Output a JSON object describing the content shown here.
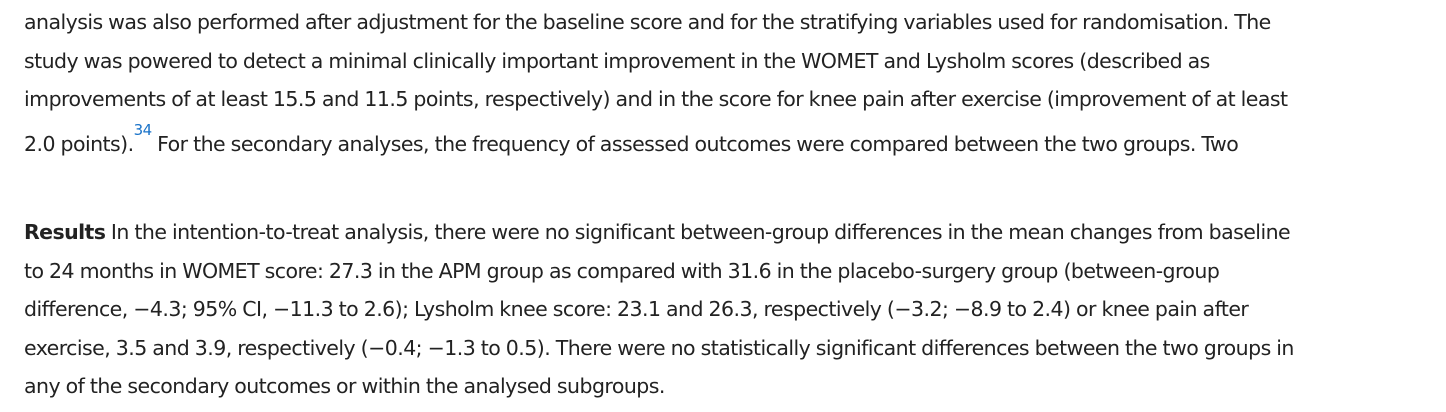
{
  "methods_paragraph": {
    "line1": "analysis was also performed after adjustment for the baseline score and for the stratifying variables used for randomisation. The",
    "line2": "study was powered to detect a minimal clinically important improvement in the WOMET and Lysholm scores (described as",
    "line3": "improvements of at least 15.5 and 11.5 points, respectively) and in the score for knee pain after exercise (improvement of at least",
    "line4_before_ref": "2.0 points).",
    "reference": "34",
    "line4_after_ref": " For the secondary analyses, the frequency of assessed outcomes were compared between the two groups. Two"
  },
  "results_paragraph": {
    "heading": "Results",
    "line1_text": " In the intention-to-treat analysis, there were no significant between-group differences in the mean changes from baseline",
    "line2": "to 24 months in WOMET score: 27.3 in the APM group as compared with 31.6 in the placebo-surgery group (between-group",
    "line3": "difference, −4.3; 95% CI, −11.3 to 2.6); Lysholm knee score: 23.1 and 26.3, respectively (−3.2; −8.9 to 2.4) or knee pain after",
    "line4": "exercise, 3.5 and 3.9, respectively (−0.4; −1.3 to 0.5). There were no statistically significant differences between the two groups in",
    "line5": "any of the secondary outcomes or within the analysed subgroups."
  },
  "colors": {
    "text": "#222222",
    "reference_link": "#1a73c9",
    "background": "#ffffff"
  }
}
